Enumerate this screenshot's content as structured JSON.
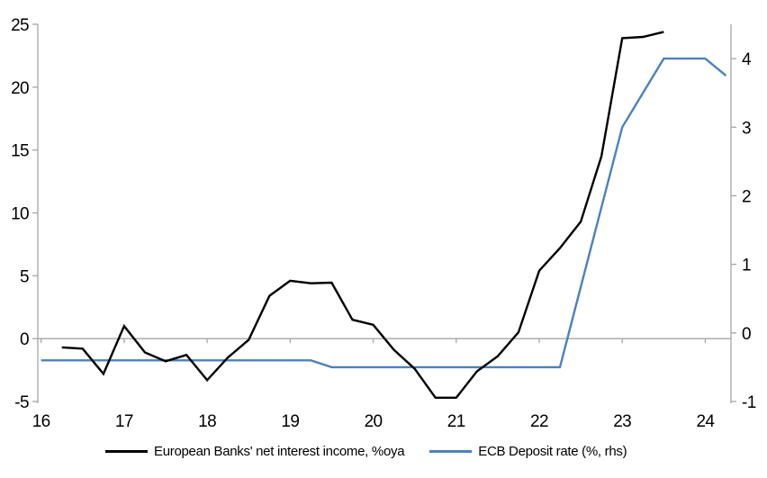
{
  "colors": {
    "background": "#ffffff",
    "axis": "#a6a6a6",
    "text": "#000000",
    "nii_line": "#000000",
    "ecb_line": "#4a82bd"
  },
  "chart_data": {
    "type": "line",
    "title": "",
    "grid": "zero-line-only",
    "legend_position": "bottom",
    "x_axis": {
      "ticks": [
        16,
        17,
        18,
        19,
        20,
        21,
        22,
        23,
        24
      ],
      "tick_labels": [
        "16",
        "17",
        "18",
        "19",
        "20",
        "21",
        "22",
        "23",
        "24"
      ],
      "range": [
        15.96,
        24.31
      ]
    },
    "y_left": {
      "ticks": [
        -5,
        0,
        5,
        10,
        15,
        20,
        25
      ],
      "tick_labels": [
        "-5",
        "0",
        "5",
        "10",
        "15",
        "20",
        "25"
      ],
      "range": [
        -5,
        25
      ]
    },
    "y_right": {
      "ticks": [
        -1,
        0,
        1,
        2,
        3,
        4
      ],
      "tick_labels": [
        "-1",
        "0",
        "1",
        "2",
        "3",
        "4"
      ],
      "range": [
        -1,
        4.5
      ]
    },
    "series": [
      {
        "name": "European Banks' net interest income, %oya",
        "axis": "left",
        "color": "#000000",
        "x": [
          16.25,
          16.5,
          16.75,
          17,
          17.25,
          17.5,
          17.75,
          18,
          18.25,
          18.5,
          18.75,
          19,
          19.25,
          19.5,
          19.75,
          20,
          20.25,
          20.5,
          20.75,
          21,
          21.25,
          21.5,
          21.75,
          22,
          22.25,
          22.5,
          22.75,
          23,
          23.25,
          23.5
        ],
        "y": [
          -0.7,
          -0.8,
          -2.8,
          1.0,
          -1.1,
          -1.8,
          -1.3,
          -3.3,
          -1.5,
          -0.1,
          3.4,
          4.6,
          4.4,
          4.45,
          1.5,
          1.1,
          -0.9,
          -2.4,
          -4.7,
          -4.7,
          -2.6,
          -1.4,
          0.5,
          5.4,
          7.2,
          9.3,
          14.5,
          23.9,
          24.0,
          24.4
        ]
      },
      {
        "name": "ECB Deposit rate (%, rhs)",
        "axis": "right",
        "color": "#4a82bd",
        "x": [
          16.0,
          19.25,
          19.5,
          22.25,
          23.0,
          23.5,
          24.0,
          24.25
        ],
        "y": [
          -0.4,
          -0.4,
          -0.5,
          -0.5,
          3.0,
          4.0,
          4.0,
          3.75
        ]
      }
    ]
  }
}
